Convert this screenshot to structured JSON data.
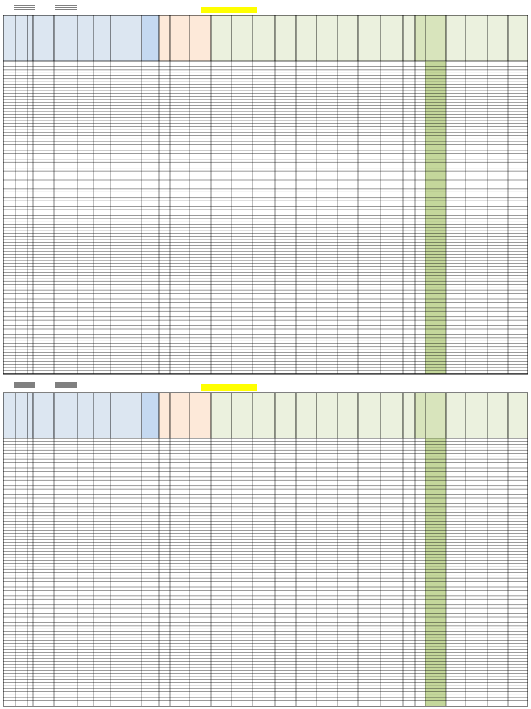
{
  "pages": [
    {
      "header_colors": [
        "#dce6f1",
        "#dce6f1",
        "#dce6f1",
        "#dce6f1",
        "#dce6f1",
        "#dce6f1",
        "#dce6f1",
        "#dce6f1",
        "#c5d9f1",
        "#fde9d9",
        "#fde9d9",
        "#fde9d9",
        "#ebf1de",
        "#ebf1de",
        "#ebf1de",
        "#ebf1de",
        "#ebf1de",
        "#ebf1de",
        "#ebf1de",
        "#ebf1de",
        "#ebf1de",
        "#ebf1de",
        "#d8e4bc",
        "#d8e4bc",
        "#ebf1de",
        "#ebf1de",
        "#ebf1de",
        "#ebf1de"
      ],
      "highlight_color": "#c4d79b",
      "note_color": "#ffff00"
    },
    {
      "header_colors": [
        "#dce6f1",
        "#dce6f1",
        "#dce6f1",
        "#dce6f1",
        "#dce6f1",
        "#dce6f1",
        "#dce6f1",
        "#dce6f1",
        "#c5d9f1",
        "#fde9d9",
        "#fde9d9",
        "#fde9d9",
        "#ebf1de",
        "#ebf1de",
        "#ebf1de",
        "#ebf1de",
        "#ebf1de",
        "#ebf1de",
        "#ebf1de",
        "#ebf1de",
        "#ebf1de",
        "#ebf1de",
        "#d8e4bc",
        "#d8e4bc",
        "#ebf1de",
        "#ebf1de",
        "#ebf1de",
        "#ebf1de"
      ],
      "highlight_color": "#c4d79b",
      "note_color": "#ffff00"
    }
  ]
}
